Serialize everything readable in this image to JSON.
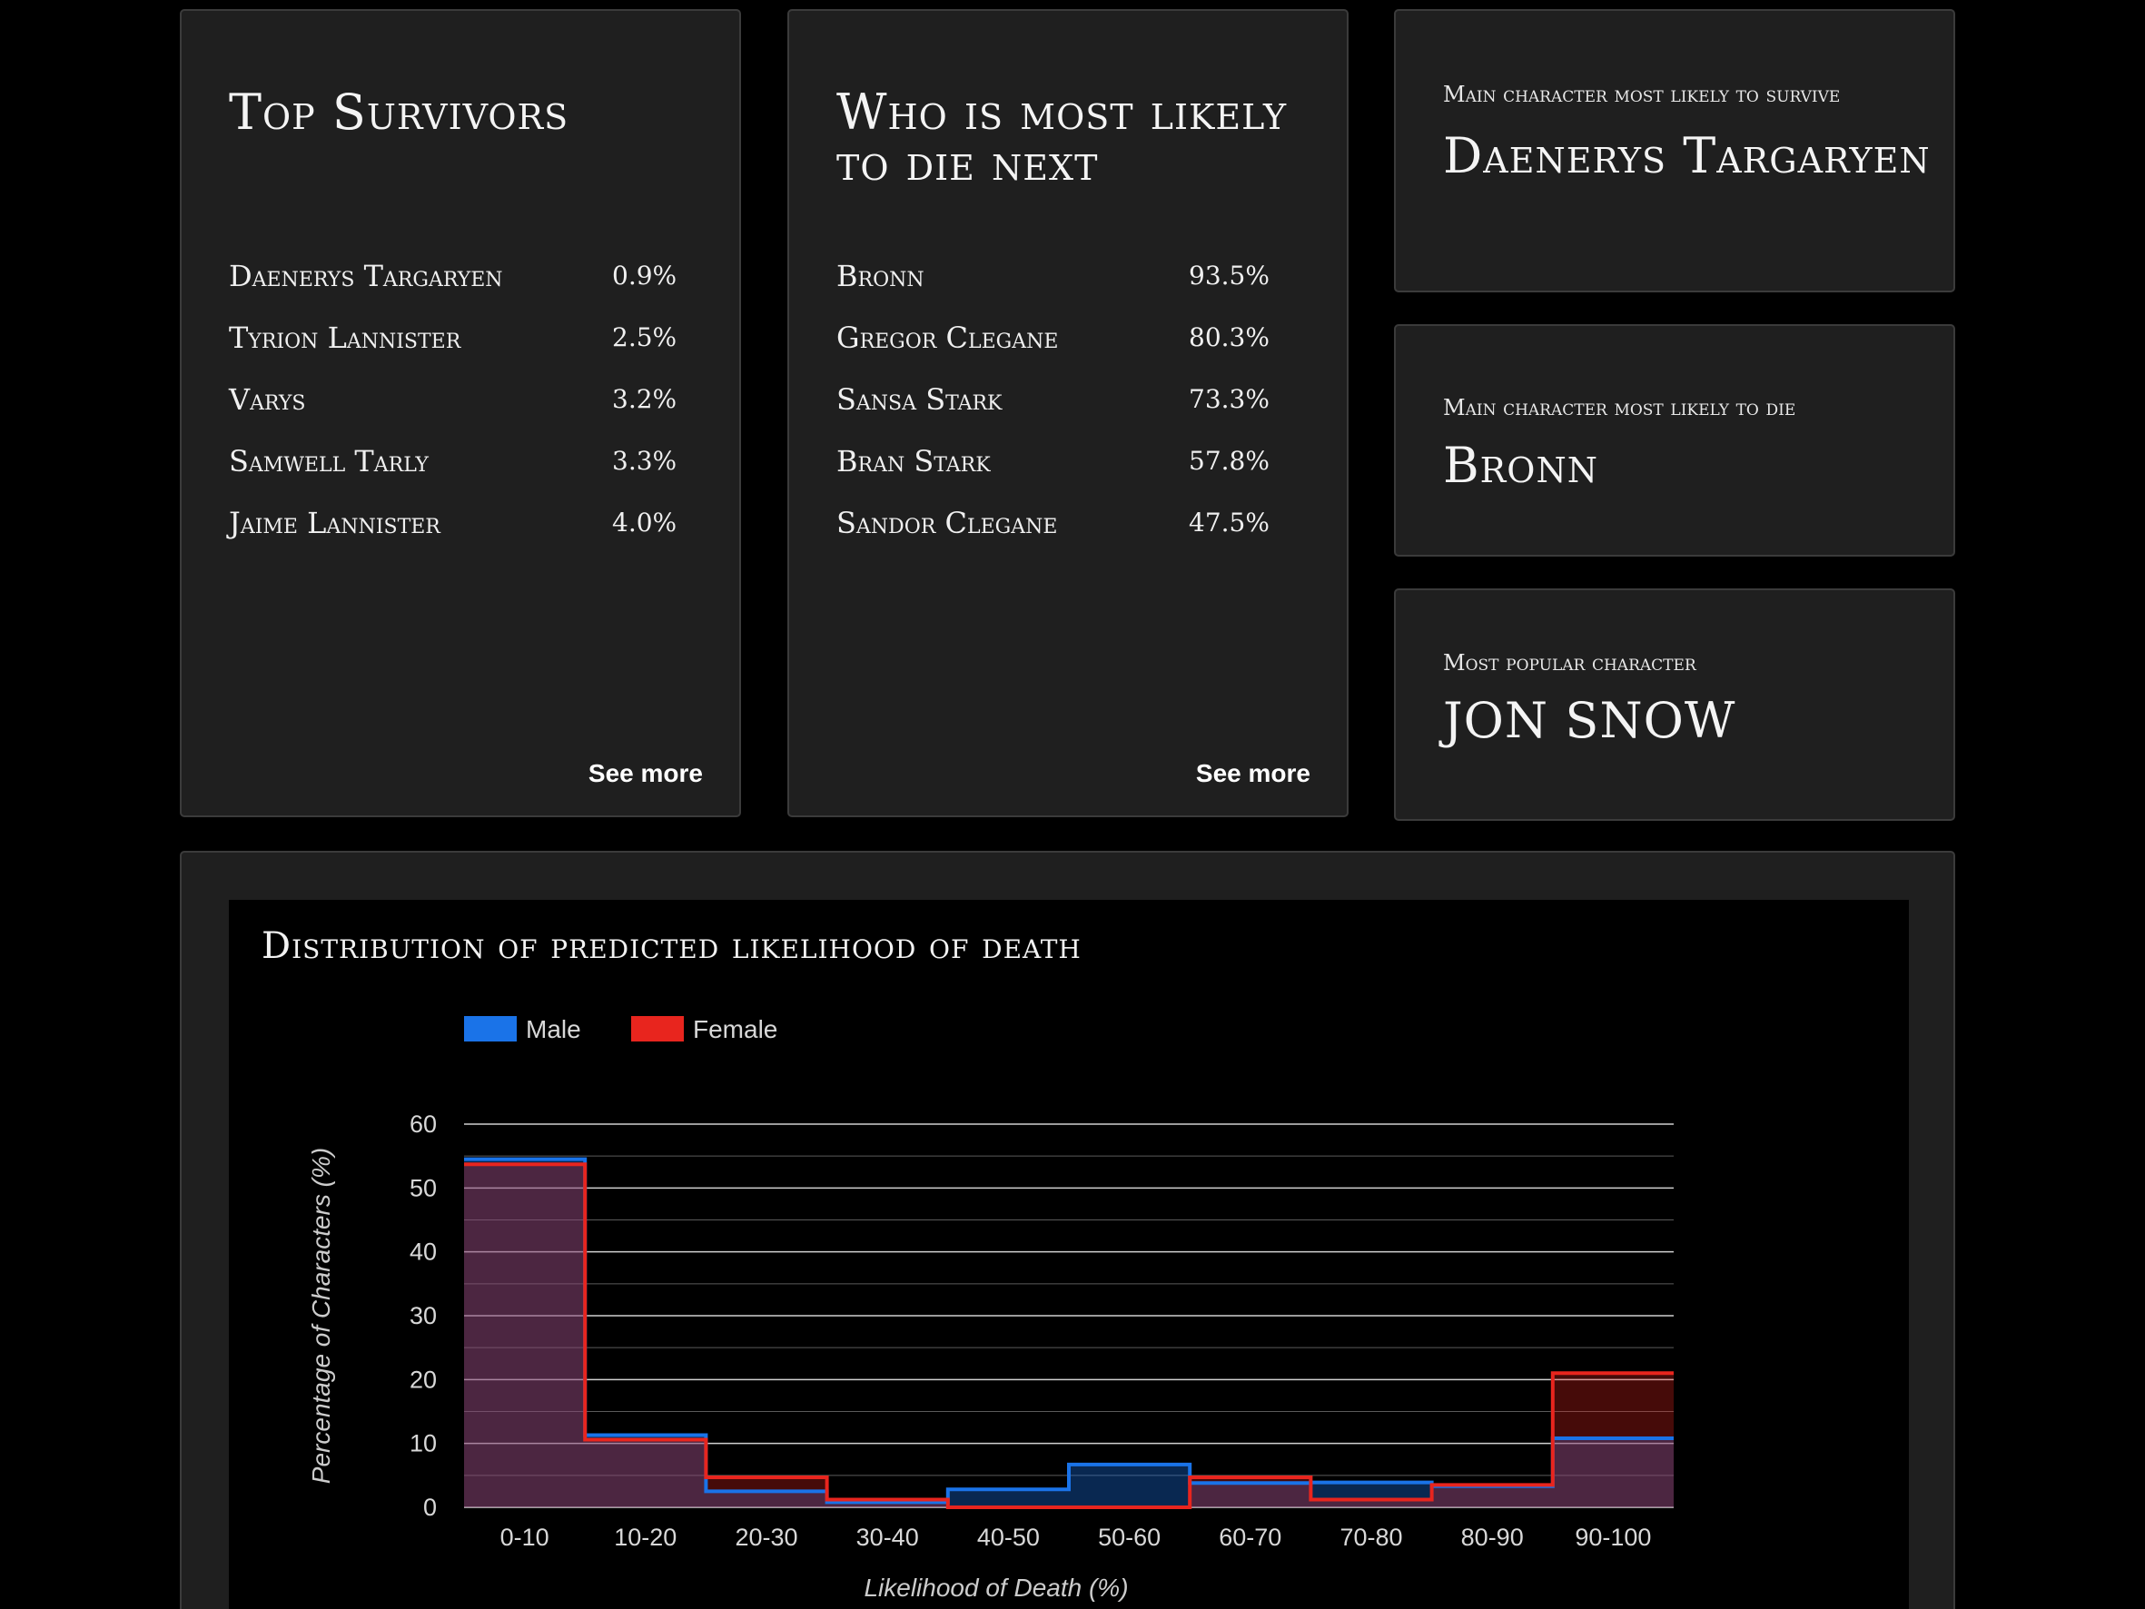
{
  "survivors": {
    "title": "Top Survivors",
    "items": [
      {
        "name": "Daenerys Targaryen",
        "value": "0.9%"
      },
      {
        "name": "Tyrion Lannister",
        "value": "2.5%"
      },
      {
        "name": "Varys",
        "value": "3.2%"
      },
      {
        "name": "Samwell Tarly",
        "value": "3.3%"
      },
      {
        "name": "Jaime Lannister",
        "value": "4.0%"
      }
    ],
    "see_more": "See more"
  },
  "die_next": {
    "title": "Who is most likely to die next",
    "items": [
      {
        "name": "Bronn",
        "value": "93.5%"
      },
      {
        "name": "Gregor Clegane",
        "value": "80.3%"
      },
      {
        "name": "Sansa Stark",
        "value": "73.3%"
      },
      {
        "name": "Bran Stark",
        "value": "57.8%"
      },
      {
        "name": "Sandor Clegane",
        "value": "47.5%"
      }
    ],
    "see_more": "See more"
  },
  "stats": {
    "survive": {
      "label": "Main character most likely to survive",
      "value": "Daenerys Targaryen"
    },
    "die": {
      "label": "Main character most likely to die",
      "value": "Bronn"
    },
    "popular": {
      "label": "Most popular character",
      "value": "JON SNOW"
    }
  },
  "chart_data": {
    "type": "area",
    "title": "Distribution of predicted likelihood of death",
    "xlabel": "Likelihood of Death (%)",
    "ylabel": "Percentage of Characters (%)",
    "categories": [
      "0-10",
      "10-20",
      "20-30",
      "30-40",
      "40-50",
      "50-60",
      "60-70",
      "70-80",
      "80-90",
      "90-100"
    ],
    "yticks": [
      0,
      10,
      20,
      30,
      40,
      50,
      60
    ],
    "ylim": [
      0,
      60
    ],
    "grid": true,
    "legend_position": "top-left",
    "series": [
      {
        "name": "Male",
        "color": "#1a73e8",
        "values": [
          54.5,
          11.3,
          2.5,
          0.8,
          2.8,
          6.7,
          3.8,
          3.9,
          3.3,
          10.8
        ]
      },
      {
        "name": "Female",
        "color": "#e8251e",
        "values": [
          53.7,
          10.6,
          4.7,
          1.2,
          0.0,
          0.0,
          4.7,
          1.2,
          3.5,
          21.0
        ]
      }
    ]
  }
}
